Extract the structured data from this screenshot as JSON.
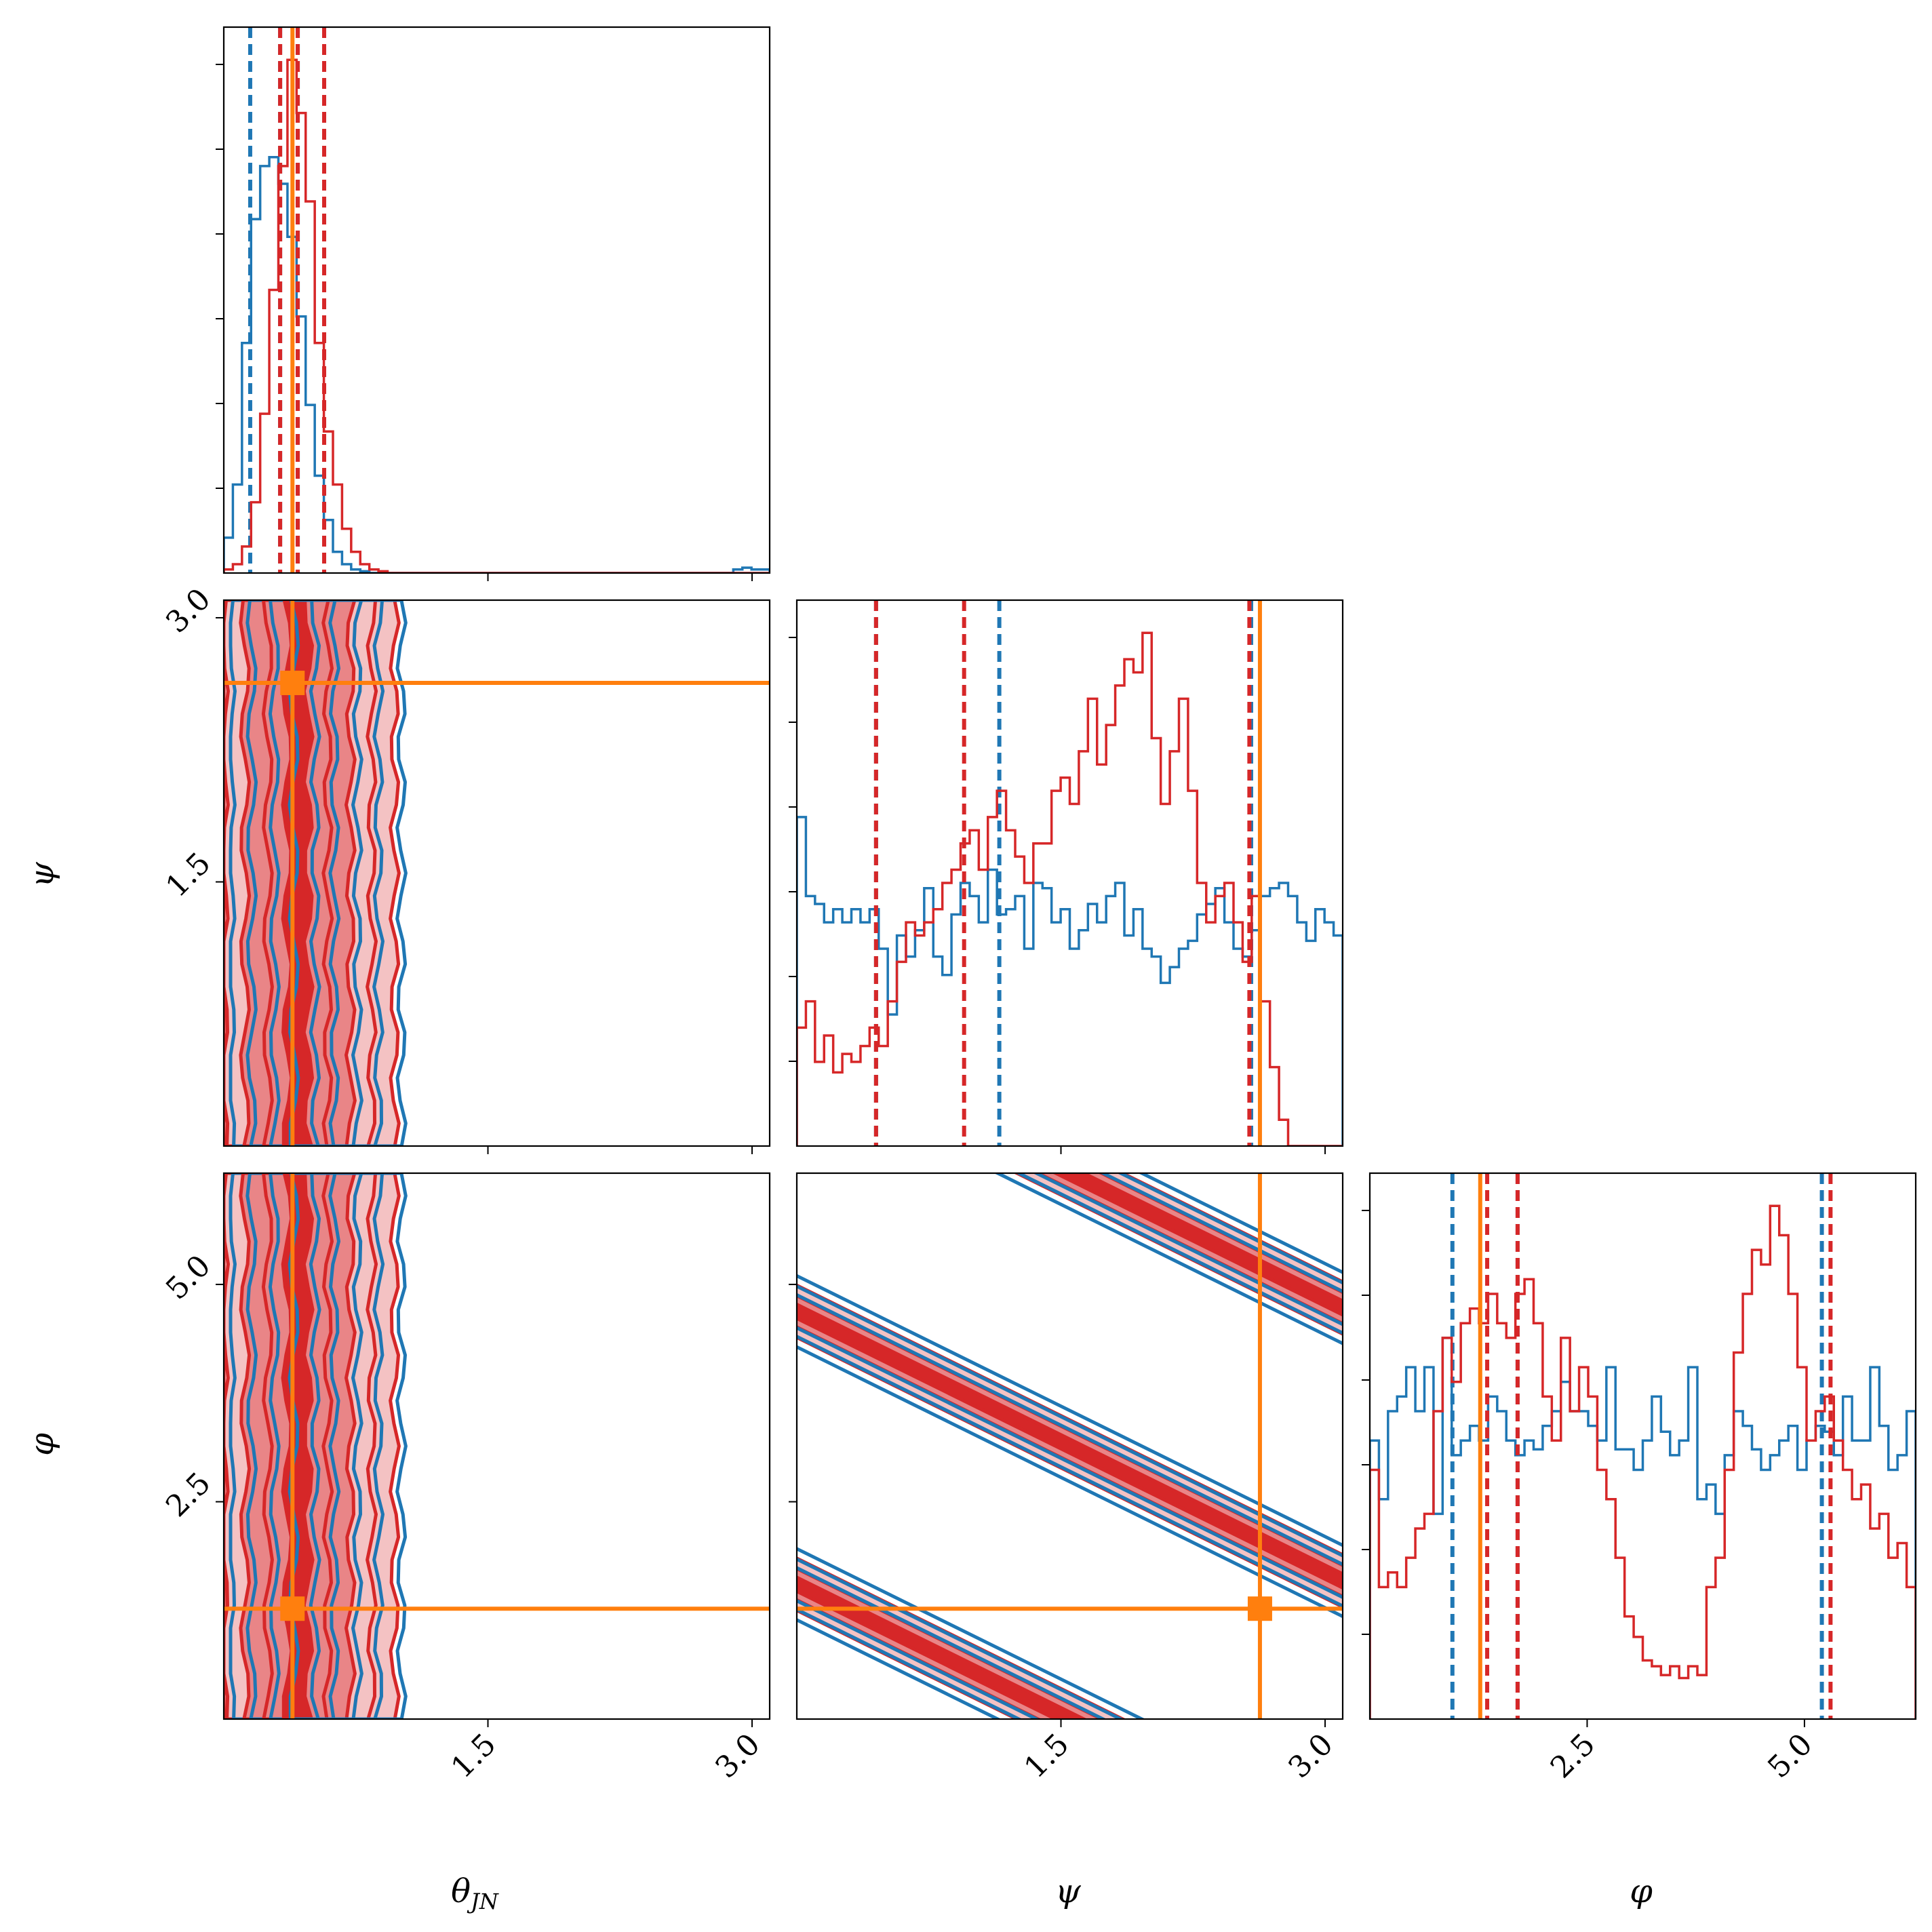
{
  "colors": {
    "blue": "#1f77b4",
    "blue_fill": "#a6c8e4",
    "red": "#d62728",
    "red_fill_light": "#f4c2c3",
    "red_fill_mid": "#e98587",
    "truth": "#ff7f0e"
  },
  "chart_data": {
    "type": "corner",
    "parameters": [
      {
        "name": "theta_jn",
        "label": "θ",
        "label_sub": "JN",
        "range": [
          0.0,
          3.1
        ],
        "ticks": [
          1.5,
          3.0
        ],
        "tick_labels": [
          "1.5",
          "3.0"
        ],
        "truth": 0.39
      },
      {
        "name": "psi",
        "label": "ψ",
        "label_sub": "",
        "range": [
          0.0,
          3.1
        ],
        "ticks": [
          1.5,
          3.0
        ],
        "tick_labels": [
          "1.5",
          "3.0"
        ],
        "truth": 2.63
      },
      {
        "name": "phi",
        "label": "φ",
        "label_sub": "",
        "range": [
          0.0,
          6.28
        ],
        "ticks": [
          2.5,
          5.0
        ],
        "tick_labels": [
          "2.5",
          "5.0"
        ],
        "truth": 1.27
      }
    ],
    "series": [
      {
        "name": "blue",
        "quantiles": {
          "theta_jn": [
            0.15,
            0.32,
            0.42
          ],
          "psi": [
            0.45,
            1.15,
            2.58
          ],
          "phi": [
            0.95,
            1.7,
            5.2
          ]
        },
        "histograms": {
          "theta_jn": [
            0.2,
            0.5,
            1.3,
            2.0,
            2.3,
            2.35,
            2.2,
            1.9,
            1.45,
            0.95,
            0.55,
            0.3,
            0.12,
            0.05,
            0.02,
            0.01,
            0,
            0,
            0,
            0,
            0,
            0,
            0,
            0,
            0,
            0,
            0,
            0,
            0,
            0,
            0,
            0,
            0,
            0,
            0,
            0,
            0,
            0,
            0,
            0,
            0,
            0,
            0,
            0,
            0,
            0,
            0,
            0,
            0,
            0,
            0,
            0,
            0,
            0,
            0,
            0,
            0.02,
            0.03,
            0.02,
            0.02
          ],
          "psi": [
            1.25,
            0.95,
            0.92,
            0.85,
            0.9,
            0.85,
            0.9,
            0.85,
            0.9,
            0.75,
            0.5,
            0.8,
            0.72,
            0.82,
            0.98,
            0.72,
            0.65,
            0.88,
            1.0,
            0.95,
            0.85,
            1.05,
            0.88,
            0.9,
            0.95,
            0.75,
            1.0,
            0.98,
            0.85,
            0.9,
            0.75,
            0.82,
            0.92,
            0.85,
            0.95,
            1.0,
            0.8,
            0.9,
            0.75,
            0.72,
            0.62,
            0.68,
            0.75,
            0.78,
            0.88,
            0.92,
            0.98,
            0.85,
            0.75,
            0.72,
            0.82,
            0.95,
            0.98,
            1.0,
            0.95,
            0.85,
            0.78,
            0.9,
            0.85,
            0.8
          ],
          "phi": [
            0.95,
            0.75,
            1.05,
            1.1,
            1.2,
            1.05,
            1.2,
            0.7,
            1.3,
            0.9,
            0.95,
            1.0,
            0.95,
            1.1,
            1.05,
            0.95,
            0.9,
            0.95,
            0.92,
            1.0,
            1.05,
            1.15,
            1.05,
            1.05,
            1.0,
            0.95,
            1.2,
            0.92,
            0.92,
            0.85,
            0.95,
            1.1,
            0.98,
            0.9,
            0.95,
            1.2,
            0.75,
            0.8,
            0.7,
            0.9,
            1.05,
            1.0,
            0.92,
            0.85,
            0.9,
            0.95,
            1.0,
            0.85,
            0.95,
            1.0,
            0.98,
            0.9,
            1.1,
            0.95,
            0.95,
            1.2,
            1.0,
            0.85,
            0.9,
            1.05
          ]
        }
      },
      {
        "name": "red",
        "quantiles": {
          "theta_jn": [
            0.32,
            0.42,
            0.57
          ],
          "psi": [
            0.45,
            0.95,
            2.57
          ],
          "phi": [
            1.35,
            1.7,
            5.3
          ]
        },
        "histograms": {
          "theta_jn": [
            0.02,
            0.05,
            0.15,
            0.4,
            0.9,
            1.6,
            2.3,
            2.9,
            2.6,
            2.1,
            1.3,
            0.8,
            0.5,
            0.25,
            0.12,
            0.05,
            0.02,
            0.01,
            0,
            0,
            0,
            0,
            0,
            0,
            0,
            0,
            0,
            0,
            0,
            0,
            0,
            0,
            0,
            0,
            0,
            0,
            0,
            0,
            0,
            0,
            0,
            0,
            0,
            0,
            0,
            0,
            0,
            0,
            0,
            0,
            0,
            0,
            0,
            0,
            0,
            0,
            0,
            0,
            0,
            0
          ],
          "psi": [
            0.45,
            0.55,
            0.32,
            0.42,
            0.28,
            0.35,
            0.32,
            0.38,
            0.45,
            0.38,
            0.55,
            0.7,
            0.85,
            0.8,
            0.85,
            0.9,
            1.0,
            1.05,
            1.15,
            1.2,
            1.05,
            1.25,
            1.35,
            1.2,
            1.1,
            1.0,
            1.15,
            1.15,
            1.35,
            1.4,
            1.3,
            1.5,
            1.7,
            1.45,
            1.6,
            1.75,
            1.85,
            1.8,
            1.95,
            1.55,
            1.3,
            1.5,
            1.7,
            1.35,
            1.0,
            0.85,
            0.95,
            1.0,
            0.85,
            0.7,
            0.95,
            0.55,
            0.3,
            0.1,
            0,
            0,
            0,
            0,
            0,
            0
          ],
          "phi": [
            0.85,
            0.45,
            0.5,
            0.45,
            0.55,
            0.65,
            0.7,
            1.05,
            1.3,
            1.15,
            1.35,
            1.4,
            1.35,
            1.45,
            1.35,
            1.3,
            1.45,
            1.5,
            1.35,
            1.1,
            0.95,
            1.3,
            1.05,
            1.2,
            1.1,
            0.85,
            0.75,
            0.55,
            0.35,
            0.28,
            0.2,
            0.18,
            0.15,
            0.18,
            0.14,
            0.18,
            0.15,
            0.45,
            0.55,
            0.85,
            1.25,
            1.45,
            1.6,
            1.55,
            1.75,
            1.65,
            1.45,
            1.2,
            0.95,
            1.05,
            1.1,
            0.95,
            0.85,
            0.75,
            0.8,
            0.65,
            0.7,
            0.55,
            0.6,
            0.45
          ]
        }
      }
    ],
    "contours_2d": {
      "theta_jn_vs_psi": {
        "description_units": "theta_jn, psi",
        "center_theta_jn": 0.42,
        "band_half_widths": [
          0.06,
          0.17,
          0.3,
          0.42,
          0.55
        ]
      },
      "theta_jn_vs_phi": {
        "center_theta_jn": 0.42,
        "band_half_widths": [
          0.06,
          0.17,
          0.3,
          0.42,
          0.55
        ]
      },
      "psi_vs_phi": {
        "slope": -1.0,
        "bands_intercepts": [
          1.55,
          4.69,
          7.83
        ],
        "band_half_widths": [
          0.08,
          0.18,
          0.3
        ]
      }
    }
  }
}
